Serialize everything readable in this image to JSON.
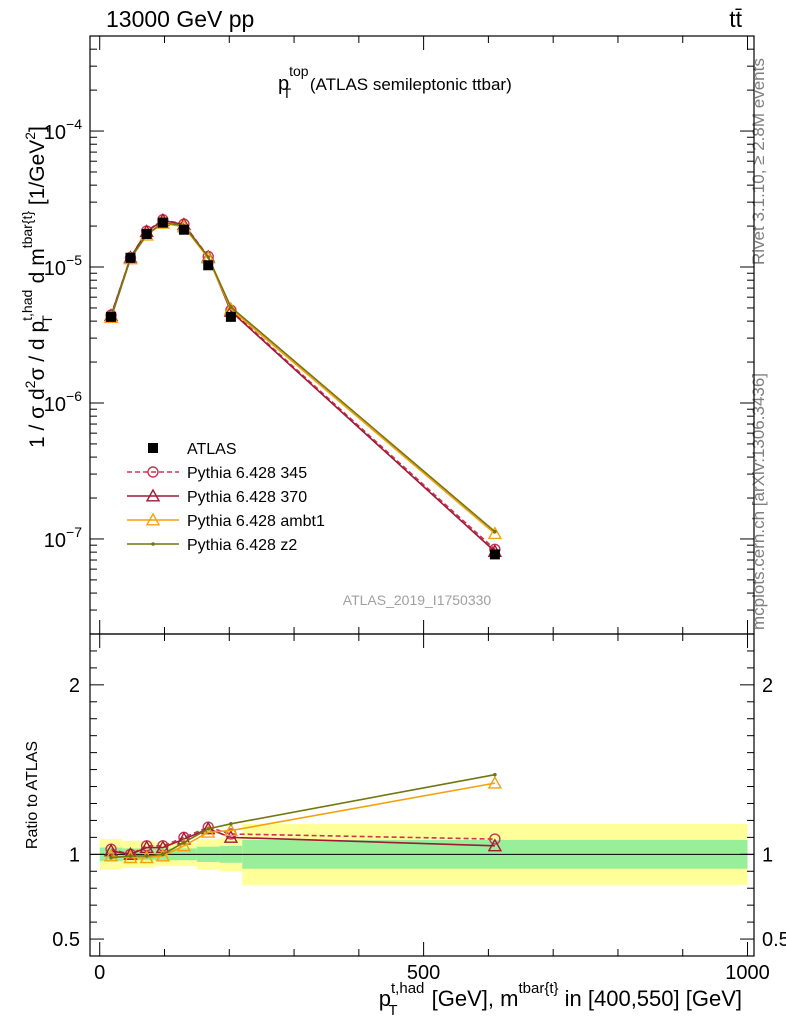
{
  "header": {
    "left": "13000 GeV pp",
    "right": "tt̄"
  },
  "side_labels": {
    "rivet": "Rivet 3.1.10, ≥ 2.8M events",
    "mcplots": "mcplots.cern.ch [arXiv:1306.3436]"
  },
  "chart_data": {
    "type": "line",
    "title": {
      "base": "p",
      "sup": "top",
      "sub": "T",
      "rest": " (ATLAS semileptonic ttbar)"
    },
    "analysis_id": "ATLAS_2019_I1750330",
    "ylabel_main": {
      "prefix": "1 / σ d",
      "sup2a": "2",
      "sigma": "σ / d p",
      "sup_had": "t,had",
      "sub_T": "T",
      "dm": " d m",
      "sup_tbar": "tbar{t}",
      "unit": " [1/GeV",
      "unit_sup": "2",
      "close": "]"
    },
    "ylabel_ratio": "Ratio to ATLAS",
    "xlabel": {
      "p": "p",
      "sup": "t,had",
      "sub": "T",
      "mid": " [GeV], m",
      "sup2": "tbar{t}",
      "rest": " in [400,550] [GeV]"
    },
    "xlim": [
      -15,
      1010
    ],
    "ylim_main_log": [
      2e-08,
      0.0005
    ],
    "ylim_ratio": [
      0.4,
      2.3
    ],
    "x_ticks": [
      {
        "v": 0,
        "label": "0"
      },
      {
        "v": 500,
        "label": "500"
      },
      {
        "v": 1000,
        "label": "1000"
      }
    ],
    "y_ticks_main": [
      {
        "v": 1e-07,
        "base": "10",
        "exp": "−7"
      },
      {
        "v": 1e-06,
        "base": "10",
        "exp": "−6"
      },
      {
        "v": 1e-05,
        "base": "10",
        "exp": "−5"
      },
      {
        "v": 0.0001,
        "base": "10",
        "exp": "−4"
      }
    ],
    "y_ticks_ratio": [
      {
        "v": 0.5,
        "label": "0.5"
      },
      {
        "v": 1,
        "label": "1"
      },
      {
        "v": 2,
        "label": "2"
      }
    ],
    "bins": [
      [
        0,
        35
      ],
      [
        35,
        60
      ],
      [
        60,
        85
      ],
      [
        85,
        110
      ],
      [
        110,
        150
      ],
      [
        150,
        185
      ],
      [
        185,
        220
      ],
      [
        220,
        1000
      ]
    ],
    "x": [
      17.5,
      47.5,
      72.5,
      97.5,
      130,
      167.5,
      202.5,
      610
    ],
    "data": {
      "name": "ATLAS",
      "values": [
        4.3e-06,
        1.17e-05,
        1.75e-05,
        2.12e-05,
        1.88e-05,
        1.03e-05,
        4.3e-06,
        7.7e-08
      ],
      "band_inner": [
        0.04,
        0.035,
        0.035,
        0.035,
        0.035,
        0.045,
        0.05,
        0.085
      ],
      "band_outer": [
        0.09,
        0.08,
        0.08,
        0.07,
        0.07,
        0.09,
        0.1,
        0.18
      ]
    },
    "series": [
      {
        "name": "Pythia 6.428 345",
        "color": "#cc3355",
        "marker": "circle",
        "dashed": true,
        "ratio": [
          1.03,
          1.0,
          1.05,
          1.05,
          1.1,
          1.16,
          1.12,
          1.09
        ]
      },
      {
        "name": "Pythia 6.428 370",
        "color": "#a01a35",
        "marker": "triangle",
        "dashed": false,
        "ratio": [
          1.02,
          1.0,
          1.04,
          1.04,
          1.09,
          1.15,
          1.1,
          1.05
        ]
      },
      {
        "name": "Pythia 6.428 ambt1",
        "color": "#f2a20c",
        "marker": "triangle",
        "dashed": false,
        "ratio": [
          0.99,
          0.98,
          0.98,
          0.99,
          1.05,
          1.13,
          1.14,
          1.42
        ]
      },
      {
        "name": "Pythia 6.428 z2",
        "color": "#75750f",
        "marker": "dot",
        "dashed": false,
        "ratio": [
          0.98,
          0.99,
          0.99,
          1.0,
          1.07,
          1.15,
          1.18,
          1.47
        ]
      }
    ]
  }
}
